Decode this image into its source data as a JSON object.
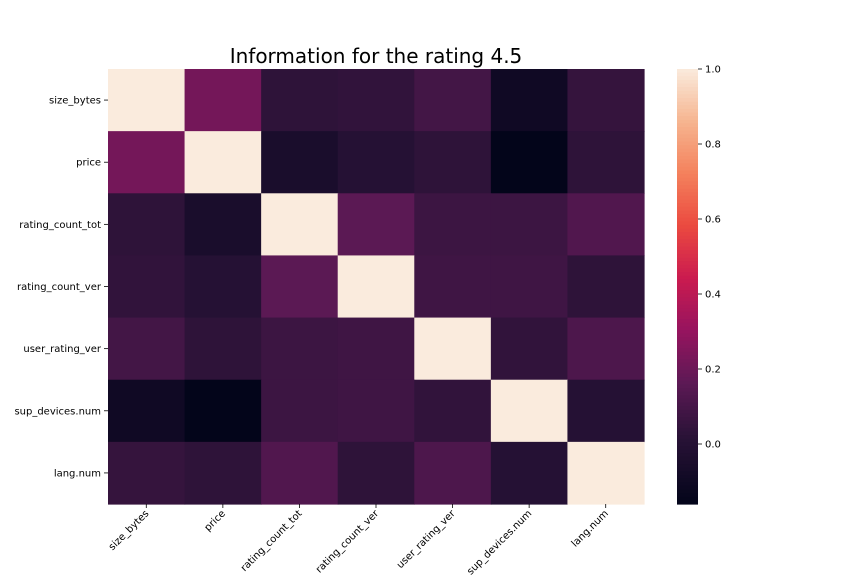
{
  "chart_data": {
    "type": "heatmap",
    "title": "Information for the rating 4.5",
    "xlabel": "",
    "ylabel": "",
    "x_labels": [
      "size_bytes",
      "price",
      "rating_count_tot",
      "rating_count_ver",
      "user_rating_ver",
      "sup_devices.num",
      "lang.num"
    ],
    "y_labels": [
      "size_bytes",
      "price",
      "rating_count_tot",
      "rating_count_ver",
      "user_rating_ver",
      "sup_devices.num",
      "lang.num"
    ],
    "values": [
      [
        1.0,
        0.22,
        0.03,
        0.04,
        0.09,
        -0.1,
        0.05
      ],
      [
        0.22,
        1.0,
        -0.05,
        0.0,
        0.03,
        -0.16,
        0.03
      ],
      [
        0.03,
        -0.05,
        1.0,
        0.16,
        0.07,
        0.07,
        0.13
      ],
      [
        0.04,
        0.0,
        0.16,
        1.0,
        0.08,
        0.08,
        0.03
      ],
      [
        0.09,
        0.03,
        0.07,
        0.08,
        1.0,
        0.04,
        0.12
      ],
      [
        -0.1,
        -0.16,
        0.07,
        0.08,
        0.04,
        1.0,
        0.0
      ],
      [
        0.05,
        0.03,
        0.13,
        0.03,
        0.12,
        0.0,
        1.0
      ]
    ],
    "vmin": -0.16,
    "vmax": 1.0,
    "colormap": "rocket",
    "colorbar": {
      "ticks": [
        0.0,
        0.2,
        0.4,
        0.6,
        0.8,
        1.0
      ],
      "tick_labels": [
        "0.0",
        "0.2",
        "0.4",
        "0.6",
        "0.8",
        "1.0"
      ]
    },
    "grid": false,
    "legend": "colorbar-right"
  }
}
